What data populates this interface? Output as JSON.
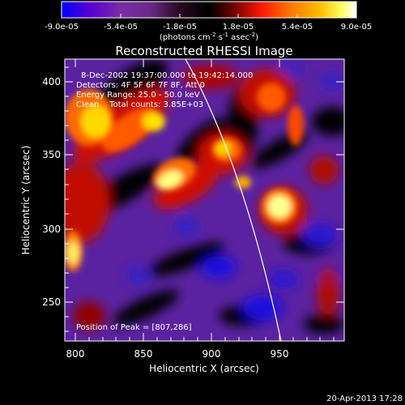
{
  "colorbar": {
    "ticks": [
      "-9.0e-05",
      "-5.4e-05",
      "-1.8e-05",
      "1.8e-05",
      "5.4e-05",
      "9.0e-05"
    ],
    "units": "(photons cm",
    "units_sup1": "-2",
    "units_mid": " s",
    "units_sup2": "-1",
    "units_end": " asec",
    "units_sup3": "-2",
    "units_close": ")",
    "colors": [
      "#0000ff",
      "#5a00d0",
      "#7a2ca6",
      "#3a1030",
      "#000000",
      "#6a0000",
      "#ff1a00",
      "#ff7a00",
      "#ffc000",
      "#ffff60",
      "#ffffff"
    ]
  },
  "title": "Reconstructed RHESSI Image",
  "info": {
    "line1": "8-Dec-2002 19:37:00.000 to 19:42:14.000",
    "line2": "Detectors: 4F 5F 6F 7F 8F, Att 0",
    "line3": "Energy Range: 25.0 - 50.0 keV",
    "line4": "Clean    Total counts: 3.85E+03",
    "peak": "Position of Peak = [807,286]"
  },
  "axes": {
    "xlabel": "Heliocentric X (arcsec)",
    "ylabel": "Heliocentric Y (arcsec)",
    "xticks": [
      "800",
      "850",
      "900",
      "950"
    ],
    "yticks": [
      "400",
      "350",
      "300",
      "250"
    ]
  },
  "timestamp": "20-Apr-2013 17:28"
}
